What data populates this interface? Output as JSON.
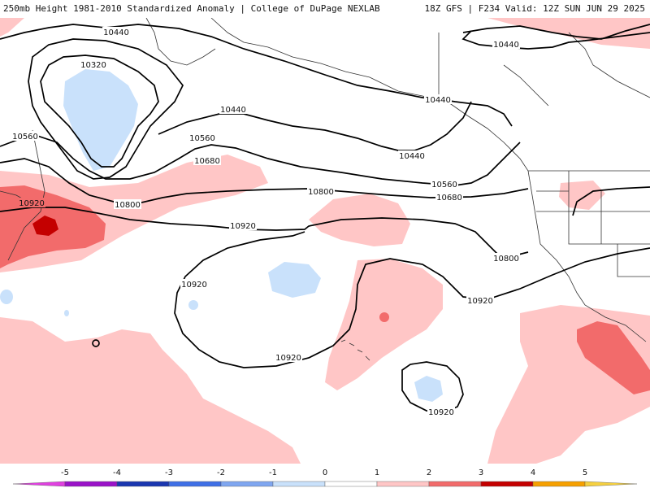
{
  "header": {
    "left": "250mb Height 1981-2010 Standardized Anomaly | College of DuPage NEXLAB",
    "right": "18Z GFS | F234 Valid: 12Z SUN JUN 29 2025"
  },
  "contours": {
    "labels": [
      "10320",
      "10440",
      "10560",
      "10680",
      "10800",
      "10920"
    ]
  },
  "colorbar": {
    "ticks": [
      "-5",
      "-4",
      "-3",
      "-2",
      "-1",
      "0",
      "1",
      "2",
      "3",
      "4",
      "5"
    ],
    "colors": [
      "#e040e0",
      "#9a12c8",
      "#1a36b0",
      "#3f6fe6",
      "#7fa6f0",
      "#c9e1fb",
      "#ffffff",
      "#ffc6c6",
      "#f26b6b",
      "#c40000",
      "#f6a000",
      "#f5d040"
    ]
  },
  "anomaly_colors": {
    "light_blue": "#c9e1fb",
    "light_pink": "#ffc6c6",
    "medium_red": "#f26b6b",
    "dark_red": "#c40000"
  }
}
